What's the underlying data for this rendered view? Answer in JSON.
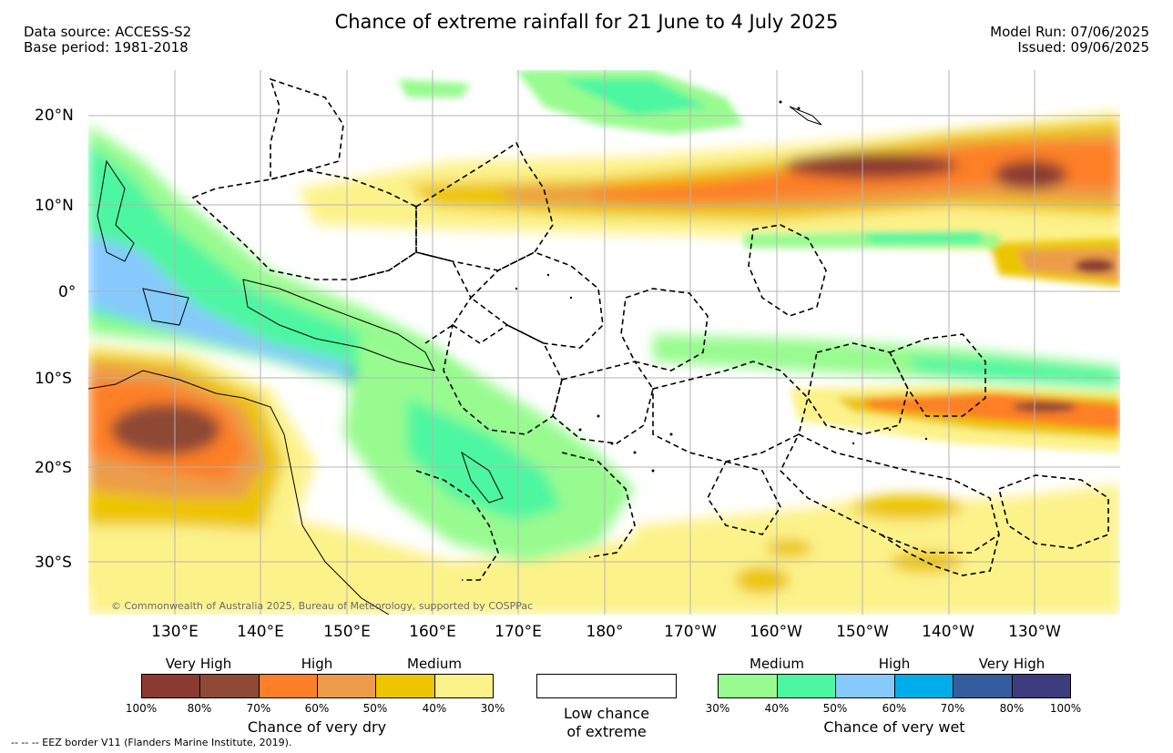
{
  "header": {
    "title": "Chance of extreme rainfall for 21 June to 4 July 2025",
    "data_source": "Data source: ACCESS-S2",
    "base_period": "Base period: 1981-2018",
    "model_run": "Model Run: 07/06/2025",
    "issued": "Issued: 09/06/2025"
  },
  "map": {
    "lat_labels": [
      "20°N",
      "10°N",
      "0°",
      "10°S",
      "20°S",
      "30°S"
    ],
    "lon_labels": [
      "130°E",
      "140°E",
      "150°E",
      "160°E",
      "170°E",
      "180°",
      "170°W",
      "160°W",
      "150°W",
      "140°W",
      "130°W"
    ],
    "copyright": "© Commonwealth of Australia 2025, Bureau of Meteorology, supported by COSPPac",
    "land_color": "#ffffff",
    "grid_color": "#b4b4b4",
    "eez_line_color": "#000000",
    "legend_bins_shown": [
      "dry 30-40%",
      "dry 40-50%",
      "dry 50-60%",
      "dry 60-70%",
      "dry 70-80%",
      "wet 30-40%",
      "wet 40-50%",
      "wet 50-60%",
      "wet 60-70%"
    ]
  },
  "legend": {
    "dry": {
      "categories": [
        "Very High",
        "High",
        "Medium"
      ],
      "ticks": [
        "100%",
        "80%",
        "70%",
        "60%",
        "50%",
        "40%",
        "30%"
      ],
      "caption": "Chance of very dry",
      "colors": [
        "#8b3a32",
        "#8e4a36",
        "#fd7f28",
        "#ec9c48",
        "#ecc500",
        "#fcf28a"
      ]
    },
    "low": {
      "caption_line1": "Low chance",
      "caption_line2": "of extreme",
      "color": "#ffffff"
    },
    "wet": {
      "categories": [
        "Medium",
        "High",
        "Very High"
      ],
      "ticks": [
        "30%",
        "40%",
        "50%",
        "60%",
        "70%",
        "80%",
        "100%"
      ],
      "caption": "Chance of very wet",
      "colors": [
        "#98fb8f",
        "#4df6a0",
        "#86c9fc",
        "#00adea",
        "#335d9c",
        "#3c3c7e"
      ]
    }
  },
  "footer": {
    "eez_note": "-- -- -- EEZ border V11 (Flanders Marine Institute, 2019)."
  }
}
